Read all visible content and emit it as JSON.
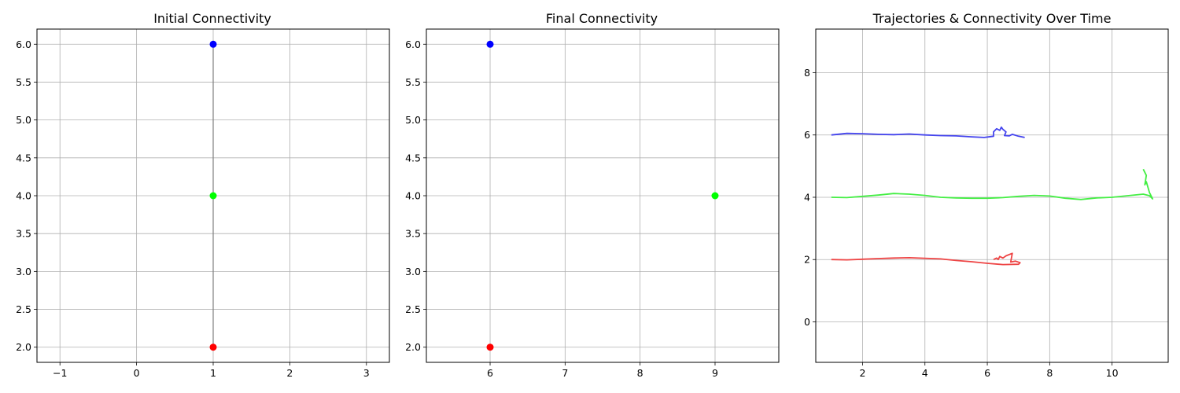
{
  "chart_data": [
    {
      "type": "scatter",
      "title": "Initial Connectivity",
      "xlabel": "",
      "ylabel": "",
      "xlim": [
        -1.3,
        3.3
      ],
      "ylim": [
        1.8,
        6.2
      ],
      "xticks": [
        -1,
        0,
        1,
        2,
        3
      ],
      "xtick_labels": [
        "−1",
        "0",
        "1",
        "2",
        "3"
      ],
      "yticks": [
        2.0,
        2.5,
        3.0,
        3.5,
        4.0,
        4.5,
        5.0,
        5.5,
        6.0
      ],
      "ytick_labels": [
        "2.0",
        "2.5",
        "3.0",
        "3.5",
        "4.0",
        "4.5",
        "5.0",
        "5.5",
        "6.0"
      ],
      "grid": true,
      "points": [
        {
          "x": 1,
          "y": 6,
          "color": "#0000ff"
        },
        {
          "x": 1,
          "y": 4,
          "color": "#00ff00"
        },
        {
          "x": 1,
          "y": 2,
          "color": "#ff0000"
        }
      ],
      "edges": [
        [
          0,
          1
        ],
        [
          1,
          2
        ]
      ],
      "edge_color": "#808080"
    },
    {
      "type": "scatter",
      "title": "Final Connectivity",
      "xlabel": "",
      "ylabel": "",
      "xlim": [
        5.15,
        9.85
      ],
      "ylim": [
        1.8,
        6.2
      ],
      "xticks": [
        6,
        7,
        8,
        9
      ],
      "xtick_labels": [
        "6",
        "7",
        "8",
        "9"
      ],
      "yticks": [
        2.0,
        2.5,
        3.0,
        3.5,
        4.0,
        4.5,
        5.0,
        5.5,
        6.0
      ],
      "ytick_labels": [
        "2.0",
        "2.5",
        "3.0",
        "3.5",
        "4.0",
        "4.5",
        "5.0",
        "5.5",
        "6.0"
      ],
      "grid": true,
      "points": [
        {
          "x": 6,
          "y": 6,
          "color": "#0000ff"
        },
        {
          "x": 9,
          "y": 4,
          "color": "#00ff00"
        },
        {
          "x": 6,
          "y": 2,
          "color": "#ff0000"
        }
      ],
      "edges": [],
      "edge_color": "#808080"
    },
    {
      "type": "line",
      "title": "Trajectories & Connectivity Over Time",
      "xlabel": "",
      "ylabel": "",
      "xlim": [
        0.5,
        11.8
      ],
      "ylim": [
        -1.3,
        9.4
      ],
      "xticks": [
        2,
        4,
        6,
        8,
        10
      ],
      "xtick_labels": [
        "2",
        "4",
        "6",
        "8",
        "10"
      ],
      "yticks": [
        0,
        2,
        4,
        6,
        8
      ],
      "ytick_labels": [
        "0",
        "2",
        "4",
        "6",
        "8"
      ],
      "grid": true,
      "series": [
        {
          "color": "#4444ee",
          "points": [
            [
              1.0,
              6.0
            ],
            [
              1.5,
              6.05
            ],
            [
              2.0,
              6.04
            ],
            [
              2.5,
              6.02
            ],
            [
              3.0,
              6.01
            ],
            [
              3.5,
              6.03
            ],
            [
              4.0,
              6.0
            ],
            [
              4.5,
              5.98
            ],
            [
              5.0,
              5.97
            ],
            [
              5.5,
              5.94
            ],
            [
              5.9,
              5.92
            ],
            [
              6.2,
              5.96
            ],
            [
              6.2,
              6.1
            ],
            [
              6.3,
              6.2
            ],
            [
              6.4,
              6.15
            ],
            [
              6.45,
              6.25
            ],
            [
              6.5,
              6.18
            ],
            [
              6.6,
              6.1
            ],
            [
              6.55,
              5.98
            ],
            [
              6.7,
              5.97
            ],
            [
              6.8,
              6.02
            ],
            [
              7.0,
              5.96
            ],
            [
              7.2,
              5.92
            ]
          ]
        },
        {
          "color": "#44ee44",
          "points": [
            [
              1.0,
              4.0
            ],
            [
              1.5,
              3.99
            ],
            [
              2.0,
              4.03
            ],
            [
              2.5,
              4.07
            ],
            [
              3.0,
              4.12
            ],
            [
              3.5,
              4.1
            ],
            [
              4.0,
              4.06
            ],
            [
              4.5,
              4.0
            ],
            [
              5.0,
              3.98
            ],
            [
              5.5,
              3.97
            ],
            [
              6.0,
              3.97
            ],
            [
              6.5,
              3.99
            ],
            [
              7.0,
              4.03
            ],
            [
              7.5,
              4.06
            ],
            [
              8.0,
              4.04
            ],
            [
              8.5,
              3.97
            ],
            [
              9.0,
              3.93
            ],
            [
              9.5,
              3.98
            ],
            [
              10.0,
              4.0
            ],
            [
              10.5,
              4.05
            ],
            [
              11.0,
              4.1
            ],
            [
              11.2,
              4.05
            ],
            [
              11.3,
              3.95
            ],
            [
              11.2,
              4.15
            ],
            [
              11.1,
              4.5
            ],
            [
              11.05,
              4.4
            ],
            [
              11.1,
              4.7
            ],
            [
              11.05,
              4.8
            ],
            [
              11.0,
              4.9
            ]
          ]
        },
        {
          "color": "#ee4444",
          "points": [
            [
              1.0,
              2.0
            ],
            [
              1.5,
              1.99
            ],
            [
              2.0,
              2.01
            ],
            [
              2.5,
              2.03
            ],
            [
              3.0,
              2.05
            ],
            [
              3.5,
              2.06
            ],
            [
              4.0,
              2.04
            ],
            [
              4.5,
              2.02
            ],
            [
              5.0,
              1.97
            ],
            [
              5.5,
              1.93
            ],
            [
              6.0,
              1.88
            ],
            [
              6.5,
              1.84
            ],
            [
              7.0,
              1.85
            ],
            [
              7.05,
              1.9
            ],
            [
              6.9,
              1.95
            ],
            [
              6.75,
              1.92
            ],
            [
              6.8,
              2.2
            ],
            [
              6.6,
              2.12
            ],
            [
              6.5,
              2.05
            ],
            [
              6.4,
              2.1
            ],
            [
              6.35,
              2.0
            ],
            [
              6.3,
              2.05
            ],
            [
              6.2,
              2.0
            ]
          ]
        }
      ]
    }
  ]
}
